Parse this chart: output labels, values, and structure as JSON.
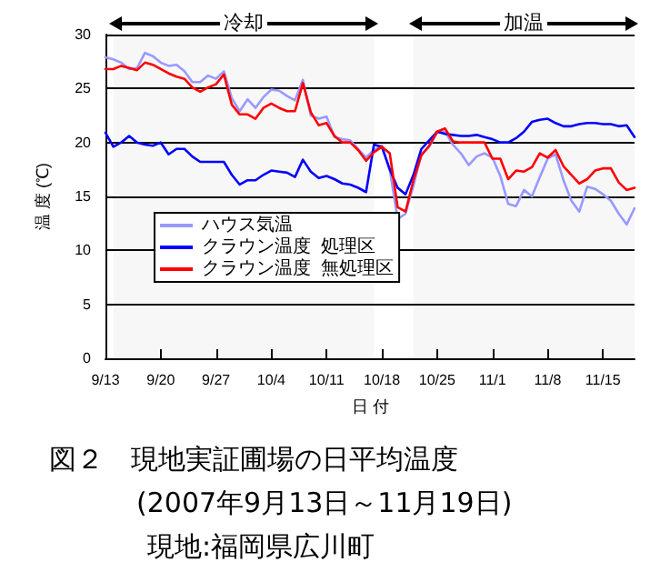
{
  "chart_data": {
    "type": "line",
    "title": "図２　現地実証圃場の日平均温度",
    "subtitle": "(2007年9月13日～11月19日)",
    "annotations": [
      "現地:福岡県広川町"
    ],
    "xlabel": "日 付",
    "ylabel": "温 度 (℃)",
    "x": [
      "--09-13",
      "--09-14",
      "--09-15",
      "--09-16",
      "--09-17",
      "--09-18",
      "--09-19",
      "--09-20",
      "--09-21",
      "--09-22",
      "--09-23",
      "--09-24",
      "--09-25",
      "--09-26",
      "--09-27",
      "--09-28",
      "--09-29",
      "--09-30",
      "--10-01",
      "--10-02",
      "--10-03",
      "--10-04",
      "--10-05",
      "--10-06",
      "--10-07",
      "--10-08",
      "--10-09",
      "--10-10",
      "--10-11",
      "--10-12",
      "--10-13",
      "--10-14",
      "--10-15",
      "--10-16",
      "--10-17",
      "--10-18",
      "--10-19",
      "--10-20",
      "--10-21",
      "--10-22",
      "--10-23",
      "--10-24",
      "--10-25",
      "--10-26",
      "--10-27",
      "--10-28",
      "--10-29",
      "--10-30",
      "--10-31",
      "--11-01",
      "--11-02",
      "--11-03",
      "--11-04",
      "--11-05",
      "--11-06",
      "--11-07",
      "--11-08",
      "--11-09",
      "--11-10",
      "--11-11",
      "--11-12",
      "--11-13",
      "--11-14",
      "--11-15",
      "--11-16",
      "--11-17",
      "--11-18",
      "--11-19"
    ],
    "series": [
      {
        "name": "ハウス気温",
        "color": "#9999ff",
        "values": [
          27.9,
          27.7,
          27.4,
          26.8,
          26.9,
          28.3,
          28.0,
          27.4,
          27.1,
          27.2,
          26.6,
          25.6,
          25.6,
          26.2,
          25.9,
          26.6,
          24.1,
          22.9,
          24.0,
          23.2,
          24.2,
          24.9,
          24.8,
          24.3,
          23.9,
          25.8,
          22.5,
          22.2,
          22.4,
          20.5,
          20.3,
          20.2,
          19.4,
          18.6,
          19.3,
          19.7,
          17.5,
          12.9,
          13.4,
          16.0,
          18.9,
          19.6,
          20.9,
          21.0,
          19.8,
          19.0,
          17.9,
          18.7,
          19.0,
          18.6,
          16.9,
          14.3,
          14.1,
          15.6,
          15.0,
          16.8,
          18.5,
          18.9,
          16.5,
          14.6,
          13.6,
          15.9,
          15.7,
          15.2,
          14.6,
          13.4,
          12.4,
          13.9
        ]
      },
      {
        "name": "クラウン温度  処理区",
        "color": "#0000ff",
        "values": [
          20.9,
          19.6,
          20.0,
          20.6,
          20.0,
          19.8,
          19.7,
          20.0,
          18.9,
          19.4,
          19.4,
          18.7,
          18.2,
          18.2,
          18.2,
          18.2,
          17.0,
          16.1,
          16.5,
          16.5,
          17.0,
          17.4,
          17.3,
          17.2,
          16.8,
          18.4,
          17.3,
          16.7,
          16.9,
          16.6,
          16.2,
          16.1,
          15.8,
          15.4,
          19.8,
          19.6,
          17.5,
          15.8,
          15.2,
          17.0,
          19.4,
          20.2,
          21.0,
          20.8,
          20.7,
          20.6,
          20.6,
          20.7,
          20.5,
          20.3,
          20.0,
          20.0,
          20.4,
          21.0,
          21.9,
          22.1,
          22.2,
          21.8,
          21.5,
          21.5,
          21.7,
          21.8,
          21.8,
          21.7,
          21.7,
          21.5,
          21.6,
          20.5
        ]
      },
      {
        "name": "クラウン温度  無処理区",
        "color": "#ff0000",
        "values": [
          26.8,
          26.8,
          27.1,
          26.9,
          26.7,
          27.4,
          27.2,
          26.8,
          26.4,
          26.1,
          25.9,
          25.1,
          24.7,
          25.1,
          25.4,
          26.3,
          23.5,
          22.6,
          22.6,
          22.2,
          23.2,
          23.6,
          23.2,
          22.9,
          22.9,
          25.5,
          22.8,
          21.6,
          21.8,
          20.6,
          20.0,
          20.0,
          19.3,
          18.3,
          19.1,
          19.6,
          19.0,
          14.0,
          13.6,
          16.5,
          18.8,
          19.7,
          21.0,
          21.3,
          20.1,
          20.0,
          20.0,
          20.0,
          20.0,
          18.5,
          18.5,
          16.6,
          17.4,
          17.3,
          17.7,
          19.0,
          18.6,
          19.3,
          17.8,
          17.0,
          16.2,
          16.6,
          17.4,
          17.6,
          17.6,
          16.3,
          15.6,
          15.8
        ]
      }
    ],
    "xlim": [
      "--09-13",
      "--11-19"
    ],
    "xticks": [
      {
        "value": "--09-13",
        "label": "9/13"
      },
      {
        "value": "--09-20",
        "label": "9/20"
      },
      {
        "value": "--09-27",
        "label": "9/27"
      },
      {
        "value": "--10-04",
        "label": "10/4"
      },
      {
        "value": "--10-11",
        "label": "10/11"
      },
      {
        "value": "--10-18",
        "label": "10/18"
      },
      {
        "value": "--10-25",
        "label": "10/25"
      },
      {
        "value": "--11-01",
        "label": "11/1"
      },
      {
        "value": "--11-08",
        "label": "11/8"
      },
      {
        "value": "--11-15",
        "label": "11/15"
      }
    ],
    "ylim": [
      0,
      30
    ],
    "yticks": [
      0,
      5,
      10,
      15,
      20,
      25,
      30
    ],
    "bands": [
      {
        "axis": "x",
        "from": "--09-14",
        "to": "--10-17",
        "label": "冷却"
      },
      {
        "axis": "x",
        "from": "--10-22",
        "to": "--11-19",
        "label": "加温"
      }
    ],
    "grid": "y",
    "legend": "center left",
    "marker": "none",
    "line_style": "solid"
  }
}
